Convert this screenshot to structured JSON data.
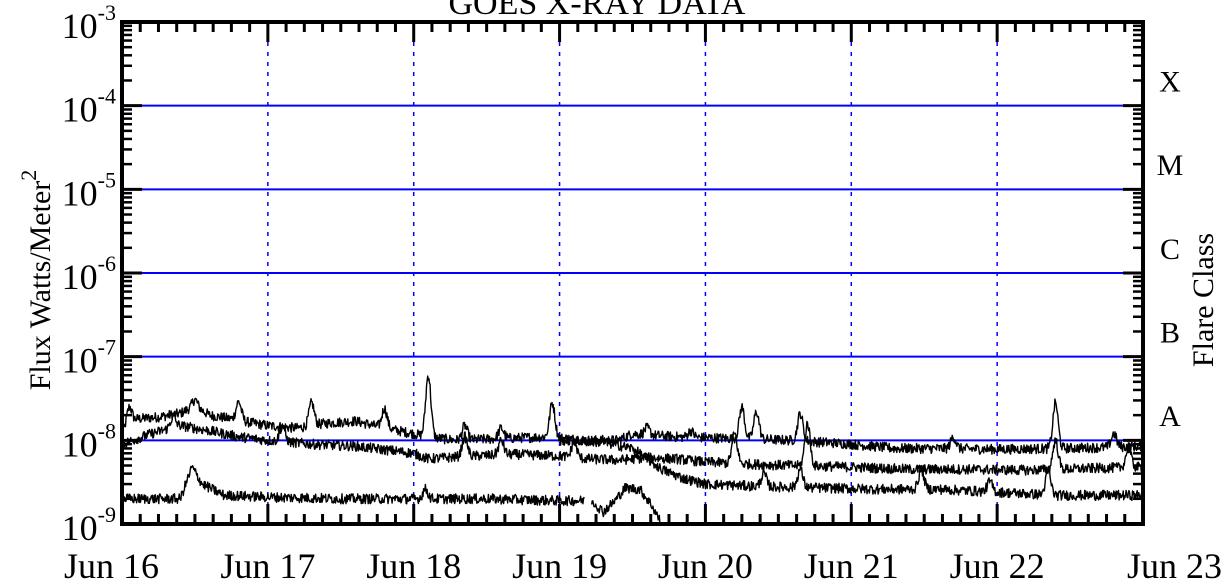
{
  "chart_data": {
    "type": "line",
    "title": "GOES X-RAY DATA",
    "ylabel": "Flux Watts/Meter",
    "ylabel_sup": "2",
    "y2label": "Flare Class",
    "yscale": "log",
    "ylim": [
      1e-09,
      0.001
    ],
    "xlim": [
      "2014-06-16",
      "2014-06-23"
    ],
    "x_ticks": [
      "Jun 16",
      "Jun 17",
      "Jun 18",
      "Jun 19",
      "Jun 20",
      "Jun 21",
      "Jun 22",
      "Jun 23"
    ],
    "y_ticks": [
      {
        "value": 1e-09,
        "base": "10",
        "exp": "-9"
      },
      {
        "value": 1e-08,
        "base": "10",
        "exp": "-8"
      },
      {
        "value": 1e-07,
        "base": "10",
        "exp": "-7"
      },
      {
        "value": 1e-06,
        "base": "10",
        "exp": "-6"
      },
      {
        "value": 1e-05,
        "base": "10",
        "exp": "-5"
      },
      {
        "value": 0.0001,
        "base": "10",
        "exp": "-4"
      },
      {
        "value": 0.001,
        "base": "10",
        "exp": "-3"
      }
    ],
    "flare_classes": [
      {
        "label": "A",
        "value": 1e-08
      },
      {
        "label": "B",
        "value": 1e-07
      },
      {
        "label": "C",
        "value": 1e-06
      },
      {
        "label": "M",
        "value": 1e-05
      },
      {
        "label": "X",
        "value": 0.0001
      }
    ],
    "grid": {
      "horizontal_levels": [
        1e-08,
        1e-07,
        1e-06,
        1e-05,
        0.0001
      ],
      "horizontal_color": "#0000ff",
      "vertical_dotted": true,
      "vertical_color": "#0000ff"
    },
    "line_color": "#000000",
    "series": [
      {
        "points": [
          [
            0.0,
            1.2e-08
          ],
          [
            0.1,
            1.8e-08
          ],
          [
            0.25,
            1.9e-08
          ],
          [
            0.4,
            2.1e-08
          ],
          [
            0.5,
            2.6e-08
          ],
          [
            0.6,
            2e-08
          ],
          [
            0.75,
            1.8e-08
          ],
          [
            0.9,
            1.6e-08
          ],
          [
            1.0,
            1.5e-08
          ],
          [
            1.2,
            1.4e-08
          ],
          [
            1.4,
            1.6e-08
          ],
          [
            1.6,
            1.7e-08
          ],
          [
            1.8,
            1.4e-08
          ],
          [
            2.0,
            1.2e-08
          ],
          [
            2.08,
            1.1e-08
          ],
          [
            2.3,
            1e-08
          ],
          [
            2.6,
            1.05e-08
          ],
          [
            2.9,
            1.1e-08
          ],
          [
            3.2,
            1e-08
          ],
          [
            3.4,
            1e-08
          ],
          [
            3.5,
            1.2e-08
          ],
          [
            3.8,
            1.1e-08
          ],
          [
            4.2,
            1.05e-08
          ],
          [
            4.6,
            1e-08
          ],
          [
            4.8,
            9.5e-09
          ],
          [
            5.0,
            9e-09
          ],
          [
            5.3,
            8e-09
          ],
          [
            5.6,
            8e-09
          ],
          [
            6.0,
            7.8e-09
          ],
          [
            6.4,
            8e-09
          ],
          [
            6.7,
            8.2e-09
          ],
          [
            7.0,
            8.5e-09
          ]
        ],
        "spikes": [
          [
            0.05,
            2.5e-08
          ],
          [
            0.5,
            3.1e-08
          ],
          [
            0.8,
            2.9e-08
          ],
          [
            1.3,
            2.8e-08
          ],
          [
            1.8,
            2.4e-08
          ],
          [
            2.1,
            6e-08
          ],
          [
            2.35,
            1.5e-08
          ],
          [
            2.6,
            1.4e-08
          ],
          [
            2.95,
            2.8e-08
          ],
          [
            3.6,
            1.4e-08
          ],
          [
            3.9,
            1.3e-08
          ],
          [
            4.25,
            2.5e-08
          ],
          [
            4.35,
            2.2e-08
          ],
          [
            4.65,
            2.1e-08
          ],
          [
            5.7,
            1.1e-08
          ],
          [
            6.4,
            2.8e-08
          ],
          [
            6.8,
            1.2e-08
          ]
        ]
      },
      {
        "points": [
          [
            0.0,
            9e-09
          ],
          [
            0.2,
            1.2e-08
          ],
          [
            0.4,
            1.5e-08
          ],
          [
            0.6,
            1.3e-08
          ],
          [
            0.8,
            1.1e-08
          ],
          [
            1.0,
            1e-08
          ],
          [
            1.3,
            9e-09
          ],
          [
            1.6,
            8.5e-09
          ],
          [
            2.0,
            7e-09
          ],
          [
            2.1,
            6e-09
          ],
          [
            2.4,
            6.5e-09
          ],
          [
            2.7,
            6.8e-09
          ],
          [
            3.0,
            6.5e-09
          ],
          [
            3.2,
            6e-09
          ],
          [
            3.4,
            5.8e-09
          ],
          [
            3.6,
            6.2e-09
          ],
          [
            3.8,
            6e-09
          ],
          [
            4.0,
            5.5e-09
          ],
          [
            4.3,
            5.2e-09
          ],
          [
            4.6,
            5e-09
          ],
          [
            5.0,
            4.8e-09
          ],
          [
            5.4,
            4.5e-09
          ],
          [
            5.8,
            4.5e-09
          ],
          [
            6.2,
            4.4e-09
          ],
          [
            6.6,
            4.6e-09
          ],
          [
            7.0,
            4.8e-09
          ]
        ],
        "spikes": [
          [
            0.35,
            1.9e-08
          ],
          [
            1.1,
            1.5e-08
          ],
          [
            2.35,
            1.1e-08
          ],
          [
            2.6,
            1e-08
          ],
          [
            3.1,
            9.5e-09
          ],
          [
            4.2,
            1.2e-08
          ],
          [
            4.7,
            1.6e-08
          ],
          [
            6.4,
            1e-08
          ],
          [
            6.9,
            8e-09
          ]
        ]
      },
      {
        "points": [
          [
            0.0,
            2e-09
          ],
          [
            0.4,
            2e-09
          ],
          [
            0.48,
            4.8e-09
          ],
          [
            0.55,
            3e-09
          ],
          [
            0.7,
            2.2e-09
          ],
          [
            1.0,
            2.1e-09
          ],
          [
            1.5,
            2e-09
          ],
          [
            2.0,
            2e-09
          ],
          [
            2.5,
            2e-09
          ],
          [
            3.0,
            1.9e-09
          ],
          [
            3.17,
            1.9e-09
          ]
        ],
        "spikes": [
          [
            2.08,
            2.6e-09
          ]
        ]
      },
      {
        "points": [
          [
            3.22,
            1.9e-09
          ],
          [
            3.3,
            1.4e-09
          ],
          [
            3.38,
            1.9e-09
          ],
          [
            3.45,
            2.7e-09
          ],
          [
            3.55,
            2.6e-09
          ],
          [
            3.63,
            1.7e-09
          ],
          [
            3.7,
            1e-09
          ]
        ],
        "spikes": []
      },
      {
        "points": [
          [
            3.0,
            1e-08
          ],
          [
            3.3,
            9.5e-09
          ],
          [
            3.5,
            8e-09
          ],
          [
            3.7,
            4.5e-09
          ],
          [
            3.85,
            3.5e-09
          ],
          [
            4.0,
            3e-09
          ],
          [
            4.4,
            2.8e-09
          ],
          [
            4.8,
            2.7e-09
          ],
          [
            5.2,
            2.6e-09
          ],
          [
            5.6,
            2.6e-09
          ],
          [
            6.0,
            2.4e-09
          ],
          [
            6.4,
            2.2e-09
          ],
          [
            7.0,
            2.2e-09
          ]
        ],
        "spikes": [
          [
            4.4,
            4e-09
          ],
          [
            4.65,
            4.5e-09
          ],
          [
            5.48,
            4.5e-09
          ],
          [
            6.35,
            4.2e-09
          ],
          [
            5.95,
            3.2e-09
          ]
        ]
      }
    ]
  }
}
